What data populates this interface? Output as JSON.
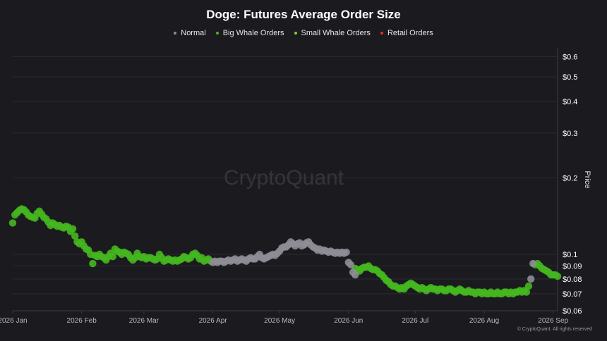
{
  "title": "Doge: Futures Average Order Size",
  "legend": [
    {
      "label": "Normal",
      "color": "#8e8d96"
    },
    {
      "label": "Big Whale Orders",
      "color": "#45b71f"
    },
    {
      "label": "Small Whale Orders",
      "color": "#8ccc3a"
    },
    {
      "label": "Retail Orders",
      "color": "#e0312b"
    }
  ],
  "watermark": "CryptoQuant",
  "credit": "© CryptoQuant. All rights reserved",
  "chart_data": {
    "type": "scatter",
    "title": "Doge: Futures Average Order Size",
    "ylabel": "Price",
    "y_scale": "log",
    "ylim": [
      0.06,
      0.65
    ],
    "x_range": [
      "2026-01-01",
      "2026-09-03"
    ],
    "x_ticks": [
      {
        "date": "2026-01-01",
        "label": "2026 Jan"
      },
      {
        "date": "2026-02-01",
        "label": "2026 Feb"
      },
      {
        "date": "2026-03-01",
        "label": "2026 Mar"
      },
      {
        "date": "2026-04-01",
        "label": "2026 Apr"
      },
      {
        "date": "2026-05-01",
        "label": "2026 May"
      },
      {
        "date": "2026-06-01",
        "label": "2026 Jun"
      },
      {
        "date": "2026-07-01",
        "label": "2026 Jul"
      },
      {
        "date": "2026-08-01",
        "label": "2026 Aug"
      },
      {
        "date": "2026-09-01",
        "label": "2026 Sep"
      }
    ],
    "y_ticks": [
      {
        "value": 0.6,
        "label": "$0.6"
      },
      {
        "value": 0.5,
        "label": "$0.5"
      },
      {
        "value": 0.4,
        "label": "$0.4"
      },
      {
        "value": 0.3,
        "label": "$0.3"
      },
      {
        "value": 0.2,
        "label": "$0.2"
      },
      {
        "value": 0.1,
        "label": "$0.1"
      },
      {
        "value": 0.09,
        "label": "$0.09"
      },
      {
        "value": 0.08,
        "label": "$0.08"
      },
      {
        "value": 0.07,
        "label": "$0.07"
      },
      {
        "value": 0.06,
        "label": "$0.06"
      }
    ],
    "legend_position": "top-center",
    "grid": true,
    "series": [
      {
        "name": "Big Whale Orders",
        "color": "#45b71f",
        "points": [
          [
            "2026-01-01",
            0.133
          ],
          [
            "2026-01-02",
            0.143
          ],
          [
            "2026-01-03",
            0.146
          ],
          [
            "2026-01-04",
            0.149
          ],
          [
            "2026-01-05",
            0.151
          ],
          [
            "2026-01-06",
            0.15
          ],
          [
            "2026-01-07",
            0.147
          ],
          [
            "2026-01-08",
            0.143
          ],
          [
            "2026-01-09",
            0.141
          ],
          [
            "2026-01-10",
            0.14
          ],
          [
            "2026-01-11",
            0.139
          ],
          [
            "2026-01-12",
            0.145
          ],
          [
            "2026-01-13",
            0.148
          ],
          [
            "2026-01-14",
            0.144
          ],
          [
            "2026-01-15",
            0.14
          ],
          [
            "2026-01-16",
            0.138
          ],
          [
            "2026-01-17",
            0.134
          ],
          [
            "2026-01-18",
            0.13
          ],
          [
            "2026-01-19",
            0.133
          ],
          [
            "2026-01-20",
            0.131
          ],
          [
            "2026-01-21",
            0.129
          ],
          [
            "2026-01-22",
            0.13
          ],
          [
            "2026-01-23",
            0.128
          ],
          [
            "2026-01-24",
            0.127
          ],
          [
            "2026-01-25",
            0.129
          ],
          [
            "2026-01-26",
            0.128
          ],
          [
            "2026-01-27",
            0.123
          ],
          [
            "2026-01-28",
            0.126
          ],
          [
            "2026-01-29",
            0.118
          ],
          [
            "2026-01-30",
            0.112
          ],
          [
            "2026-01-31",
            0.11
          ],
          [
            "2026-02-01",
            0.112
          ],
          [
            "2026-02-02",
            0.108
          ],
          [
            "2026-02-03",
            0.105
          ],
          [
            "2026-02-04",
            0.104
          ],
          [
            "2026-02-05",
            0.1
          ],
          [
            "2026-02-06",
            0.092
          ],
          [
            "2026-02-07",
            0.099
          ],
          [
            "2026-02-08",
            0.098
          ],
          [
            "2026-02-09",
            0.1
          ],
          [
            "2026-02-10",
            0.098
          ],
          [
            "2026-02-11",
            0.097
          ],
          [
            "2026-02-12",
            0.095
          ],
          [
            "2026-02-13",
            0.098
          ],
          [
            "2026-02-14",
            0.101
          ],
          [
            "2026-02-15",
            0.098
          ],
          [
            "2026-02-16",
            0.105
          ],
          [
            "2026-02-17",
            0.103
          ],
          [
            "2026-02-18",
            0.102
          ],
          [
            "2026-02-19",
            0.1
          ],
          [
            "2026-02-20",
            0.102
          ],
          [
            "2026-02-21",
            0.101
          ],
          [
            "2026-02-22",
            0.1
          ],
          [
            "2026-02-23",
            0.097
          ],
          [
            "2026-02-24",
            0.095
          ],
          [
            "2026-02-25",
            0.097
          ],
          [
            "2026-02-26",
            0.101
          ],
          [
            "2026-02-27",
            0.098
          ],
          [
            "2026-02-28",
            0.097
          ],
          [
            "2026-03-01",
            0.098
          ],
          [
            "2026-03-02",
            0.096
          ],
          [
            "2026-03-03",
            0.097
          ],
          [
            "2026-03-04",
            0.097
          ],
          [
            "2026-03-05",
            0.096
          ],
          [
            "2026-03-06",
            0.095
          ],
          [
            "2026-03-07",
            0.096
          ],
          [
            "2026-03-08",
            0.1
          ],
          [
            "2026-03-09",
            0.097
          ],
          [
            "2026-03-10",
            0.094
          ],
          [
            "2026-03-11",
            0.095
          ],
          [
            "2026-03-12",
            0.096
          ],
          [
            "2026-03-13",
            0.095
          ],
          [
            "2026-03-14",
            0.094
          ],
          [
            "2026-03-15",
            0.095
          ],
          [
            "2026-03-16",
            0.094
          ],
          [
            "2026-03-17",
            0.095
          ],
          [
            "2026-03-18",
            0.096
          ],
          [
            "2026-03-19",
            0.098
          ],
          [
            "2026-03-20",
            0.097
          ],
          [
            "2026-03-21",
            0.096
          ],
          [
            "2026-03-22",
            0.097
          ],
          [
            "2026-03-23",
            0.1
          ],
          [
            "2026-03-24",
            0.101
          ],
          [
            "2026-03-25",
            0.099
          ],
          [
            "2026-03-26",
            0.096
          ],
          [
            "2026-03-27",
            0.097
          ],
          [
            "2026-03-28",
            0.094
          ],
          [
            "2026-03-29",
            0.095
          ],
          [
            "2026-03-30",
            0.096
          ],
          [
            "2026-03-31",
            0.094
          ],
          [
            "2026-06-04",
            0.088
          ],
          [
            "2026-06-05",
            0.087
          ],
          [
            "2026-06-06",
            0.086
          ],
          [
            "2026-06-07",
            0.088
          ],
          [
            "2026-06-08",
            0.089
          ],
          [
            "2026-06-09",
            0.089
          ],
          [
            "2026-06-10",
            0.09
          ],
          [
            "2026-06-11",
            0.088
          ],
          [
            "2026-06-12",
            0.087
          ],
          [
            "2026-06-13",
            0.087
          ],
          [
            "2026-06-14",
            0.086
          ],
          [
            "2026-06-15",
            0.084
          ],
          [
            "2026-06-16",
            0.083
          ],
          [
            "2026-06-17",
            0.081
          ],
          [
            "2026-06-18",
            0.079
          ],
          [
            "2026-06-19",
            0.078
          ],
          [
            "2026-06-20",
            0.076
          ],
          [
            "2026-06-21",
            0.075
          ],
          [
            "2026-06-22",
            0.075
          ],
          [
            "2026-06-23",
            0.074
          ],
          [
            "2026-06-24",
            0.073
          ],
          [
            "2026-06-25",
            0.074
          ],
          [
            "2026-06-26",
            0.073
          ],
          [
            "2026-06-27",
            0.075
          ],
          [
            "2026-06-28",
            0.076
          ],
          [
            "2026-06-29",
            0.077
          ],
          [
            "2026-06-30",
            0.076
          ],
          [
            "2026-07-01",
            0.075
          ],
          [
            "2026-07-02",
            0.074
          ],
          [
            "2026-07-03",
            0.073
          ],
          [
            "2026-07-04",
            0.074
          ],
          [
            "2026-07-05",
            0.073
          ],
          [
            "2026-07-06",
            0.072
          ],
          [
            "2026-07-07",
            0.073
          ],
          [
            "2026-07-08",
            0.074
          ],
          [
            "2026-07-09",
            0.073
          ],
          [
            "2026-07-10",
            0.073
          ],
          [
            "2026-07-11",
            0.072
          ],
          [
            "2026-07-12",
            0.073
          ],
          [
            "2026-07-13",
            0.073
          ],
          [
            "2026-07-14",
            0.072
          ],
          [
            "2026-07-15",
            0.072
          ],
          [
            "2026-07-16",
            0.073
          ],
          [
            "2026-07-17",
            0.073
          ],
          [
            "2026-07-18",
            0.072
          ],
          [
            "2026-07-19",
            0.071
          ],
          [
            "2026-07-20",
            0.072
          ],
          [
            "2026-07-21",
            0.073
          ],
          [
            "2026-07-22",
            0.072
          ],
          [
            "2026-07-23",
            0.071
          ],
          [
            "2026-07-24",
            0.071
          ],
          [
            "2026-07-25",
            0.072
          ],
          [
            "2026-07-26",
            0.071
          ],
          [
            "2026-07-27",
            0.071
          ],
          [
            "2026-07-28",
            0.07
          ],
          [
            "2026-07-29",
            0.071
          ],
          [
            "2026-07-30",
            0.071
          ],
          [
            "2026-07-31",
            0.07
          ],
          [
            "2026-08-01",
            0.071
          ],
          [
            "2026-08-02",
            0.07
          ],
          [
            "2026-08-03",
            0.07
          ],
          [
            "2026-08-04",
            0.071
          ],
          [
            "2026-08-05",
            0.07
          ],
          [
            "2026-08-06",
            0.07
          ],
          [
            "2026-08-07",
            0.071
          ],
          [
            "2026-08-08",
            0.07
          ],
          [
            "2026-08-09",
            0.07
          ],
          [
            "2026-08-10",
            0.071
          ],
          [
            "2026-08-11",
            0.071
          ],
          [
            "2026-08-12",
            0.07
          ],
          [
            "2026-08-13",
            0.071
          ],
          [
            "2026-08-14",
            0.07
          ],
          [
            "2026-08-15",
            0.071
          ],
          [
            "2026-08-16",
            0.071
          ],
          [
            "2026-08-17",
            0.072
          ],
          [
            "2026-08-18",
            0.071
          ],
          [
            "2026-08-19",
            0.072
          ],
          [
            "2026-08-20",
            0.071
          ],
          [
            "2026-08-21",
            0.075
          ],
          [
            "2026-08-24",
            0.091
          ],
          [
            "2026-08-25",
            0.092
          ],
          [
            "2026-08-26",
            0.09
          ],
          [
            "2026-08-27",
            0.088
          ],
          [
            "2026-08-28",
            0.087
          ],
          [
            "2026-08-29",
            0.086
          ],
          [
            "2026-08-30",
            0.085
          ],
          [
            "2026-08-31",
            0.083
          ],
          [
            "2026-09-01",
            0.083
          ],
          [
            "2026-09-02",
            0.083
          ],
          [
            "2026-09-03",
            0.082
          ]
        ]
      },
      {
        "name": "Normal",
        "color": "#8e8d96",
        "points": [
          [
            "2026-04-01",
            0.093
          ],
          [
            "2026-04-02",
            0.094
          ],
          [
            "2026-04-03",
            0.093
          ],
          [
            "2026-04-04",
            0.094
          ],
          [
            "2026-04-05",
            0.094
          ],
          [
            "2026-04-06",
            0.093
          ],
          [
            "2026-04-07",
            0.094
          ],
          [
            "2026-04-08",
            0.095
          ],
          [
            "2026-04-09",
            0.094
          ],
          [
            "2026-04-10",
            0.095
          ],
          [
            "2026-04-11",
            0.096
          ],
          [
            "2026-04-12",
            0.094
          ],
          [
            "2026-04-13",
            0.095
          ],
          [
            "2026-04-14",
            0.096
          ],
          [
            "2026-04-15",
            0.095
          ],
          [
            "2026-04-16",
            0.094
          ],
          [
            "2026-04-17",
            0.096
          ],
          [
            "2026-04-18",
            0.097
          ],
          [
            "2026-04-19",
            0.096
          ],
          [
            "2026-04-20",
            0.096
          ],
          [
            "2026-04-21",
            0.098
          ],
          [
            "2026-04-22",
            0.1
          ],
          [
            "2026-04-23",
            0.097
          ],
          [
            "2026-04-24",
            0.096
          ],
          [
            "2026-04-25",
            0.097
          ],
          [
            "2026-04-26",
            0.098
          ],
          [
            "2026-04-27",
            0.099
          ],
          [
            "2026-04-28",
            0.1
          ],
          [
            "2026-04-29",
            0.099
          ],
          [
            "2026-04-30",
            0.101
          ],
          [
            "2026-05-01",
            0.103
          ],
          [
            "2026-05-02",
            0.106
          ],
          [
            "2026-05-03",
            0.107
          ],
          [
            "2026-05-04",
            0.107
          ],
          [
            "2026-05-05",
            0.109
          ],
          [
            "2026-05-06",
            0.112
          ],
          [
            "2026-05-07",
            0.11
          ],
          [
            "2026-05-08",
            0.108
          ],
          [
            "2026-05-09",
            0.11
          ],
          [
            "2026-05-10",
            0.111
          ],
          [
            "2026-05-11",
            0.108
          ],
          [
            "2026-05-12",
            0.109
          ],
          [
            "2026-05-13",
            0.111
          ],
          [
            "2026-05-14",
            0.112
          ],
          [
            "2026-05-15",
            0.109
          ],
          [
            "2026-05-16",
            0.107
          ],
          [
            "2026-05-17",
            0.106
          ],
          [
            "2026-05-18",
            0.104
          ],
          [
            "2026-05-19",
            0.105
          ],
          [
            "2026-05-20",
            0.103
          ],
          [
            "2026-05-21",
            0.104
          ],
          [
            "2026-05-22",
            0.103
          ],
          [
            "2026-05-23",
            0.102
          ],
          [
            "2026-05-24",
            0.103
          ],
          [
            "2026-05-25",
            0.102
          ],
          [
            "2026-05-26",
            0.101
          ],
          [
            "2026-05-27",
            0.102
          ],
          [
            "2026-05-28",
            0.101
          ],
          [
            "2026-05-29",
            0.102
          ],
          [
            "2026-05-30",
            0.101
          ],
          [
            "2026-05-31",
            0.102
          ],
          [
            "2026-06-01",
            0.093
          ],
          [
            "2026-06-02",
            0.091
          ],
          [
            "2026-06-03",
            0.085
          ],
          [
            "2026-06-04",
            0.083
          ],
          [
            "2026-08-22",
            0.08
          ],
          [
            "2026-08-23",
            0.092
          ]
        ]
      }
    ]
  }
}
